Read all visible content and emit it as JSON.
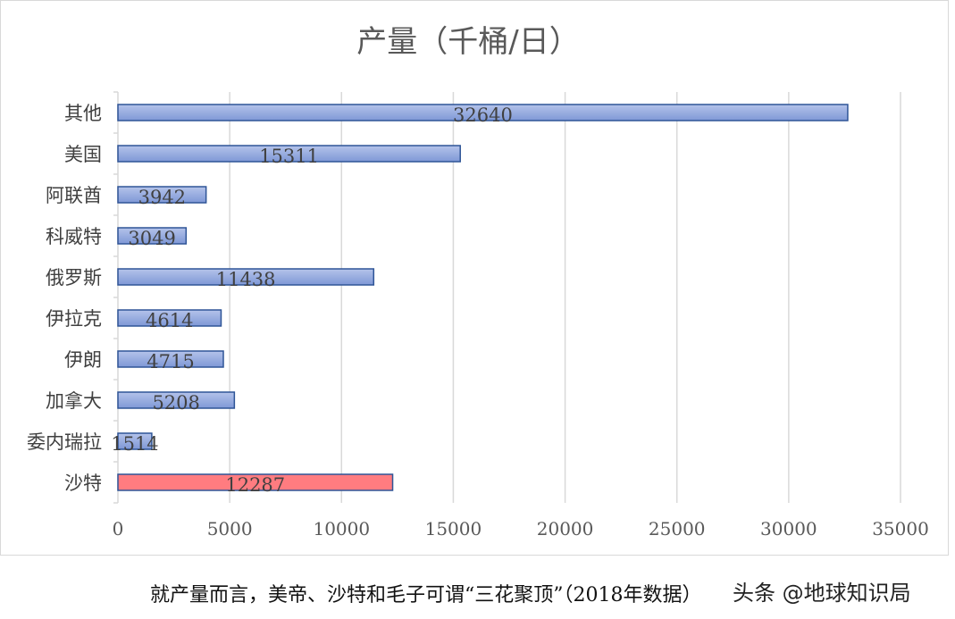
{
  "chart_data": {
    "type": "bar",
    "orientation": "horizontal",
    "title": "产量（千桶/日）",
    "categories": [
      "其他",
      "美国",
      "阿联酋",
      "科威特",
      "俄罗斯",
      "伊拉克",
      "伊朗",
      "加拿大",
      "委内瑞拉",
      "沙特"
    ],
    "values": [
      32640,
      15311,
      3942,
      3049,
      11438,
      4614,
      4715,
      5208,
      1514,
      12287
    ],
    "data_labels": [
      "32640",
      "15311",
      "3942",
      "3049",
      "11438",
      "4614",
      "4715",
      "5208",
      "1514",
      "12287"
    ],
    "highlight": {
      "category": "沙特",
      "color": "#ff7c80"
    },
    "bar_color": "#8ea5dc",
    "bar_border_color": "#2f5597",
    "xlim": [
      0,
      35000
    ],
    "x_ticks": [
      "0",
      "5000",
      "10000",
      "15000",
      "20000",
      "25000",
      "30000",
      "35000"
    ],
    "grid": true
  },
  "caption": "就产量而言，美帝、沙特和毛子可谓“三花聚顶”（2018年数据）",
  "watermark": "头条 @地球知识局"
}
